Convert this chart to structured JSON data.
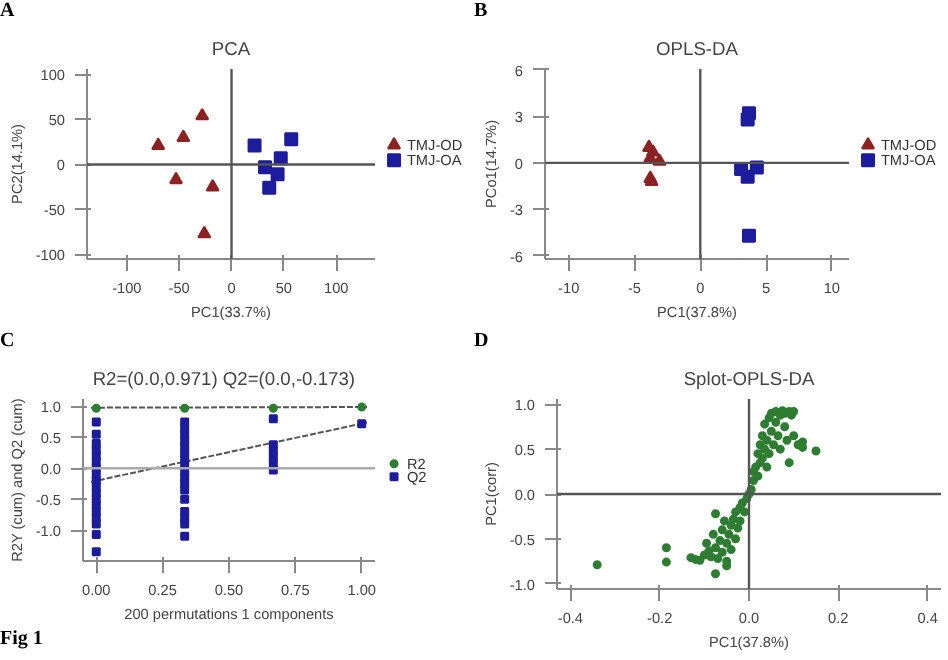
{
  "chart_data": [
    {
      "type": "scatter",
      "title": "PCA",
      "xlabel": "PC1(33.7%)",
      "ylabel": "PC2(14.1%)",
      "annotations": [
        "A"
      ],
      "xlim": [
        -138,
        137
      ],
      "ylim": [
        -105,
        106
      ],
      "xticks": [
        -100,
        -50,
        0,
        50,
        100
      ],
      "yticks": [
        -100,
        -50,
        0,
        50,
        100
      ],
      "legend": "right",
      "ref_lines": [
        {
          "axis": "x",
          "value": 0,
          "color": "#555555"
        },
        {
          "axis": "y",
          "value": 0,
          "color": "#555555"
        }
      ],
      "series": [
        {
          "name": "TMJ-OD",
          "marker": "triangle",
          "color": "#8b2323",
          "x": [
            -28,
            -46,
            -70,
            -53,
            -18,
            -26
          ],
          "values": [
            54,
            30,
            21,
            -17,
            -25,
            -77
          ]
        },
        {
          "name": "TMJ-OA",
          "marker": "square",
          "color": "#1c1c9c",
          "x": [
            22,
            57,
            47,
            32,
            44,
            36
          ],
          "values": [
            21,
            28,
            7,
            -3,
            -11,
            -26
          ]
        }
      ]
    },
    {
      "type": "scatter",
      "title": "OPLS-DA",
      "xlabel": "PC1(37.8%)",
      "ylabel": "PCo1(14.7%)",
      "annotations": [
        "B"
      ],
      "xlim": [
        -11.8,
        11.3
      ],
      "ylim": [
        -6.2,
        6.06
      ],
      "xticks": [
        -10,
        -5,
        0,
        5,
        10
      ],
      "yticks": [
        -6,
        -3,
        0,
        3,
        6
      ],
      "legend": "right",
      "ref_lines": [
        {
          "axis": "x",
          "value": 0,
          "color": "#555555"
        },
        {
          "axis": "y",
          "value": 0,
          "color": "#555555"
        }
      ],
      "series": [
        {
          "name": "TMJ-OD",
          "marker": "triangle",
          "color": "#8b2323",
          "x": [
            -3.9,
            -3.6,
            -3.8,
            -3.1,
            -3.8,
            -3.7
          ],
          "values": [
            1.0,
            0.7,
            0.3,
            0.1,
            -1.0,
            -1.2
          ]
        },
        {
          "name": "TMJ-OA",
          "marker": "square",
          "color": "#1c1c9c",
          "x": [
            3.7,
            3.6,
            3.1,
            4.3,
            3.6,
            3.7
          ],
          "values": [
            3.2,
            2.8,
            -0.4,
            -0.3,
            -0.9,
            -4.7
          ]
        }
      ]
    },
    {
      "type": "scatter",
      "title": "R2=(0.0,0.971)   Q2=(0.0,-0.173)",
      "xlabel": "200 permutations 1 components",
      "ylabel": "R2Y (cum) and Q2 (cum)",
      "annotations": [
        "C",
        "Fig 1"
      ],
      "xlim": [
        -0.05,
        1.05
      ],
      "ylim": [
        -1.5,
        1.12
      ],
      "xticks": [
        {
          "value": 0,
          "label": "0.00"
        },
        {
          "value": 0.25,
          "label": "0.25"
        },
        {
          "value": 0.5,
          "label": "0.50"
        },
        {
          "value": 0.75,
          "label": "0.75"
        },
        {
          "value": 1,
          "label": "1.00"
        }
      ],
      "yticks": [
        {
          "value": -1,
          "label": "-1.0"
        },
        -0.5,
        {
          "value": 0,
          "label": "0.0"
        },
        0.5,
        {
          "value": 1,
          "label": "1.0"
        }
      ],
      "legend": "right",
      "ref_lines": [
        {
          "axis": "y",
          "value": 0,
          "color": "#aaaaaa"
        }
      ],
      "series": [
        {
          "type": "line",
          "marker": "none",
          "line_style": "dashed",
          "color": "#555555",
          "x": [
            -0.02,
            1.02
          ],
          "values": [
            0.98,
            0.99
          ]
        },
        {
          "type": "line",
          "marker": "none",
          "line_style": "dashed",
          "color": "#555555",
          "x": [
            -0.02,
            1.02
          ],
          "values": [
            -0.22,
            0.74
          ]
        },
        {
          "name": "R2",
          "marker": "circle",
          "color": "#2e7d32",
          "x": [
            0,
            0.333,
            0.667,
            1
          ],
          "values": [
            0.97,
            0.97,
            0.97,
            0.99
          ]
        },
        {
          "name": "Q2",
          "marker": "square",
          "color": "#1c1c9c",
          "x": [
            0,
            0,
            0,
            0,
            0,
            0,
            0,
            0,
            0,
            0,
            0,
            0,
            0,
            0,
            0,
            0,
            0,
            0,
            0.333,
            0.333,
            0.333,
            0.333,
            0.333,
            0.333,
            0.333,
            0.333,
            0.333,
            0.333,
            0.333,
            0.333,
            0.333,
            0.333,
            0.333,
            0.333,
            0.333,
            0.667,
            0.667,
            0.667,
            0.667,
            0.667,
            0.667,
            1
          ],
          "values": [
            0.75,
            0.55,
            0.4,
            0.3,
            0.2,
            0.1,
            0.0,
            -0.1,
            -0.2,
            -0.3,
            -0.4,
            -0.5,
            -0.6,
            -0.7,
            -0.8,
            -0.9,
            -1.07,
            -1.35,
            0.75,
            0.65,
            0.55,
            0.45,
            0.35,
            0.25,
            0.15,
            0.05,
            -0.05,
            -0.15,
            -0.25,
            -0.35,
            -0.5,
            -0.7,
            -0.8,
            -0.9,
            -1.1,
            0.8,
            0.38,
            0.28,
            0.18,
            0.08,
            -0.03,
            0.72
          ]
        }
      ]
    },
    {
      "type": "scatter",
      "title": "Splot-OPLS-DA",
      "xlabel": "PC1(37.8%)",
      "ylabel": "PC1(corr)",
      "annotations": [
        "D"
      ],
      "xlim": [
        -0.43,
        0.43
      ],
      "ylim": [
        -1.06,
        1.06
      ],
      "xticks": [
        -0.4,
        -0.2,
        {
          "value": 0,
          "label": "0.0"
        },
        0.2,
        0.4
      ],
      "yticks": [
        {
          "value": -1,
          "label": "-1.0"
        },
        -0.5,
        {
          "value": 0,
          "label": "0.0"
        },
        0.5,
        {
          "value": 1,
          "label": "1.0"
        }
      ],
      "ref_lines": [
        {
          "axis": "x",
          "value": 0,
          "color": "#555555"
        },
        {
          "axis": "y",
          "value": 0,
          "color": "#555555"
        }
      ],
      "series": [
        {
          "marker": "circle",
          "color": "#2e7d32",
          "x": [
            -0.34,
            -0.185,
            -0.185,
            -0.075,
            -0.075,
            0.15,
            0.12,
            0.12,
            -0.13,
            -0.12,
            -0.11,
            -0.1,
            -0.095,
            -0.09,
            -0.085,
            -0.08,
            -0.075,
            -0.07,
            -0.065,
            -0.06,
            -0.06,
            -0.055,
            -0.05,
            -0.05,
            -0.045,
            -0.04,
            -0.04,
            -0.035,
            -0.03,
            -0.03,
            -0.025,
            -0.02,
            -0.02,
            -0.015,
            -0.01,
            -0.005,
            0,
            0.005,
            0.01,
            0.01,
            0.015,
            0.02,
            0.02,
            0.025,
            0.025,
            0.03,
            0.03,
            0.035,
            0.035,
            0.04,
            0.04,
            0.045,
            0.045,
            0.05,
            0.05,
            0.055,
            0.06,
            0.06,
            0.065,
            0.07,
            0.07,
            0.075,
            0.08,
            0.08,
            0.085,
            0.09,
            0.09,
            0.095,
            0.1,
            0.1,
            0.11,
            -0.05
          ],
          "values": [
            -0.79,
            -0.6,
            -0.76,
            -0.22,
            -0.89,
            0.48,
            0.58,
            0.52,
            -0.71,
            -0.73,
            -0.74,
            -0.68,
            -0.55,
            -0.64,
            -0.7,
            -0.45,
            -0.6,
            -0.72,
            -0.52,
            -0.65,
            -0.4,
            -0.3,
            -0.55,
            -0.75,
            -0.45,
            -0.35,
            -0.62,
            -0.28,
            -0.5,
            -0.2,
            -0.38,
            -0.15,
            -0.3,
            -0.1,
            -0.2,
            -0.05,
            0,
            0.05,
            0.15,
            0.25,
            0.3,
            0.2,
            0.45,
            0.35,
            0.55,
            0.4,
            0.65,
            0.5,
            0.78,
            0.6,
            0.3,
            0.85,
            0.45,
            0.7,
            0.9,
            0.55,
            0.8,
            0.92,
            0.65,
            0.88,
            0.5,
            0.93,
            0.75,
            0.9,
            0.6,
            0.92,
            0.35,
            0.88,
            0.92,
            0.65,
            0.55,
            -0.8
          ]
        }
      ]
    }
  ]
}
